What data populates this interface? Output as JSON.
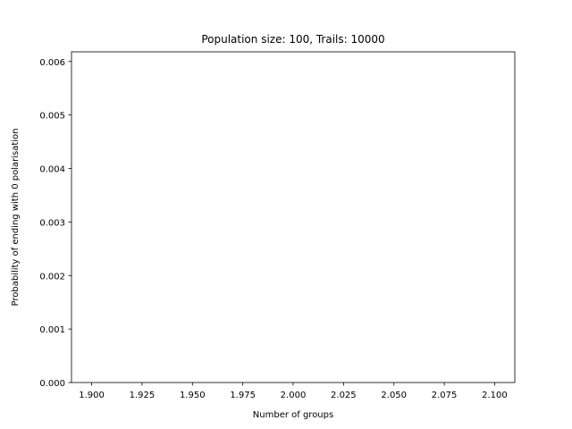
{
  "chart_data": {
    "type": "line",
    "title": "Population size: 100, Trails: 10000",
    "xlabel": "Number of groups",
    "ylabel": "Probability of ending with 0 polarisation",
    "xlim": [
      1.89,
      2.11
    ],
    "ylim": [
      0.0,
      0.00618
    ],
    "x_ticks": [
      1.9,
      1.925,
      1.95,
      1.975,
      2.0,
      2.025,
      2.05,
      2.075,
      2.1
    ],
    "x_tick_labels": [
      "1.900",
      "1.925",
      "1.950",
      "1.975",
      "2.000",
      "2.025",
      "2.050",
      "2.075",
      "2.100"
    ],
    "y_ticks": [
      0.0,
      0.001,
      0.002,
      0.003,
      0.004,
      0.005,
      0.006
    ],
    "y_tick_labels": [
      "0.000",
      "0.001",
      "0.002",
      "0.003",
      "0.004",
      "0.005",
      "0.006"
    ],
    "x": [
      2
    ],
    "series": [
      {
        "values": [
          0.0
        ]
      }
    ],
    "grid": false,
    "colors": {
      "line": "#1f77b4",
      "axes": "#000000",
      "background": "#ffffff"
    }
  }
}
